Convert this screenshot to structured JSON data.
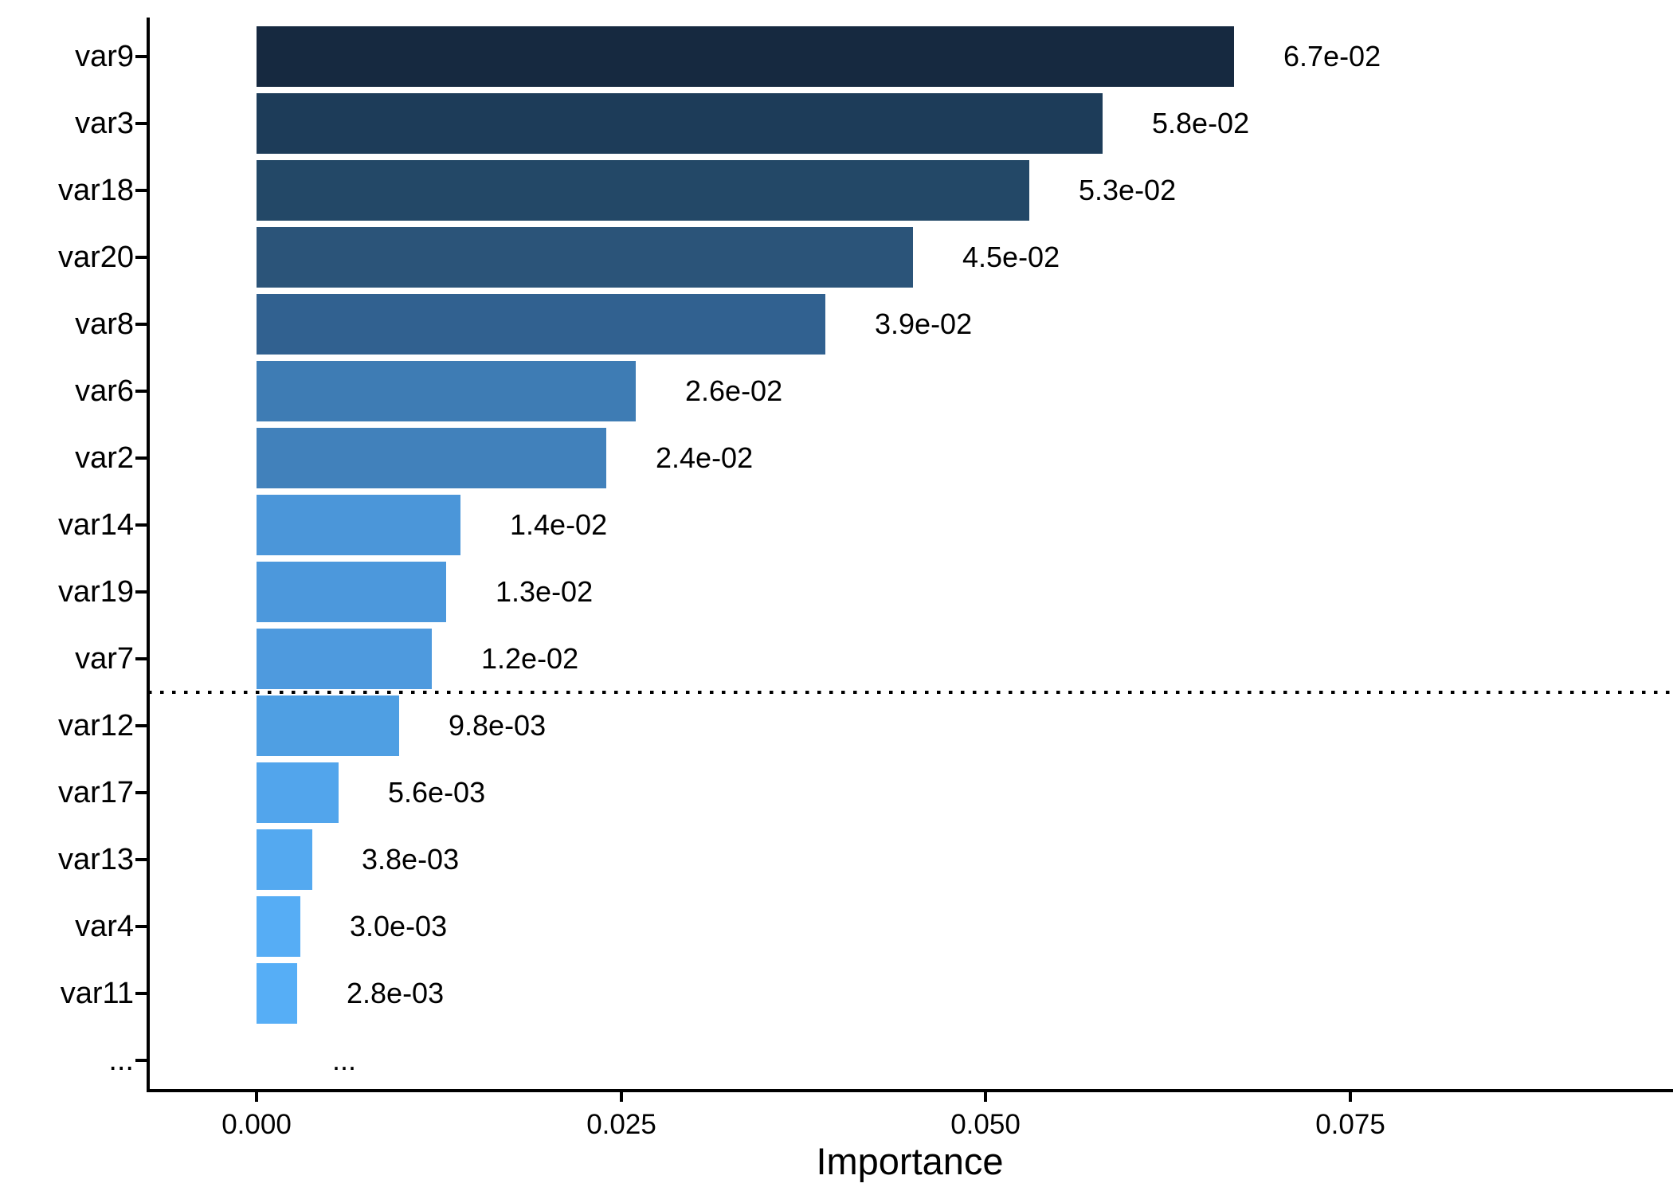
{
  "chart_data": {
    "type": "bar",
    "orientation": "horizontal",
    "title": "",
    "xlabel": "Importance",
    "ylabel": "",
    "grid": false,
    "legend": "none",
    "categories": [
      "var9",
      "var3",
      "var18",
      "var20",
      "var8",
      "var6",
      "var2",
      "var14",
      "var19",
      "var7",
      "var12",
      "var17",
      "var13",
      "var4",
      "var11",
      "..."
    ],
    "values": [
      0.067,
      0.058,
      0.053,
      0.045,
      0.039,
      0.026,
      0.024,
      0.014,
      0.013,
      0.012,
      0.0098,
      0.0056,
      0.0038,
      0.003,
      0.0028,
      null
    ],
    "value_labels": [
      "6.7e-02",
      "5.8e-02",
      "5.3e-02",
      "4.5e-02",
      "3.9e-02",
      "2.6e-02",
      "2.4e-02",
      "1.4e-02",
      "1.3e-02",
      "1.2e-02",
      "9.8e-03",
      "5.6e-03",
      "3.8e-03",
      "3.0e-03",
      "2.8e-03",
      "..."
    ],
    "bar_colors": [
      "#162940",
      "#1D3C59",
      "#234867",
      "#2B5479",
      "#316190",
      "#3E7CB4",
      "#4181BB",
      "#4B96D9",
      "#4C98DC",
      "#4E9ADE",
      "#4F9FE3",
      "#52A5EC",
      "#54A9F0",
      "#56ADF5",
      "#56AEF6",
      null
    ],
    "x_ticks": [
      0.0,
      0.025,
      0.05,
      0.075
    ],
    "x_tick_labels": [
      "0.000",
      "0.025",
      "0.050",
      "0.075"
    ],
    "xlim": [
      -0.0074,
      0.0972
    ],
    "threshold_line": {
      "style": "dotted",
      "color": "#000000",
      "between_categories": [
        "var7",
        "var12"
      ]
    }
  },
  "colors": {
    "background": "#FFFFFF",
    "axis": "#000000",
    "text": "#000000"
  }
}
